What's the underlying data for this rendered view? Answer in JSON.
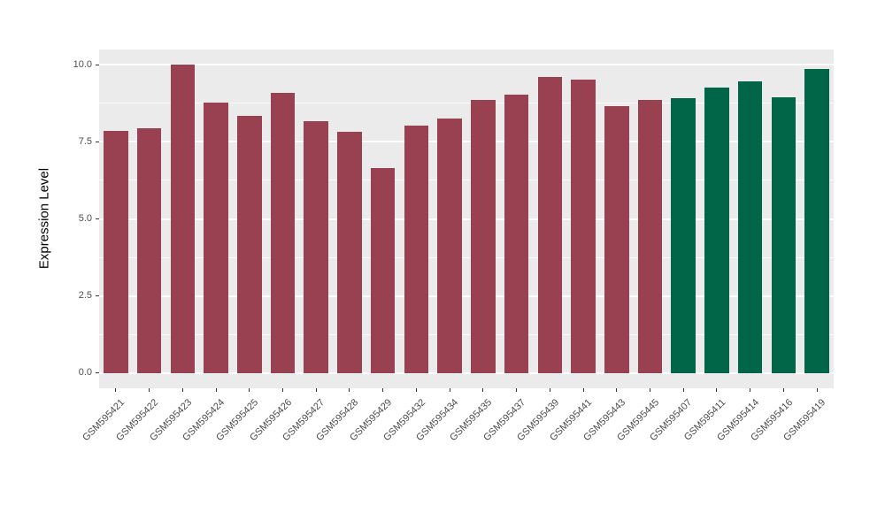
{
  "chart_data": {
    "type": "bar",
    "title": "",
    "xlabel": "",
    "ylabel": "Expression Level",
    "ylim": [
      -0.5,
      10.5
    ],
    "data_range": [
      0,
      10
    ],
    "grid": true,
    "legend_position": "none",
    "yticks": [
      0.0,
      2.5,
      5.0,
      7.5,
      10.0
    ],
    "ytick_labels": [
      "0.0",
      "2.5",
      "5.0",
      "7.5",
      "10.0"
    ],
    "minor_yticks": [
      1.25,
      3.75,
      6.25,
      8.75
    ],
    "categories": [
      "GSM595421",
      "GSM595422",
      "GSM595423",
      "GSM595424",
      "GSM595425",
      "GSM595426",
      "GSM595427",
      "GSM595428",
      "GSM595429",
      "GSM595432",
      "GSM595434",
      "GSM595435",
      "GSM595437",
      "GSM595439",
      "GSM595441",
      "GSM595443",
      "GSM595445",
      "GSM595407",
      "GSM595411",
      "GSM595414",
      "GSM595416",
      "GSM595419"
    ],
    "values": [
      7.87,
      7.94,
      10.0,
      8.78,
      8.35,
      9.09,
      8.18,
      7.83,
      6.65,
      8.04,
      8.26,
      8.87,
      9.03,
      9.6,
      9.52,
      8.65,
      8.85,
      8.92,
      9.26,
      9.47,
      8.94,
      9.86
    ],
    "bar_colors": [
      "#9A4151",
      "#9A4151",
      "#9A4151",
      "#9A4151",
      "#9A4151",
      "#9A4151",
      "#9A4151",
      "#9A4151",
      "#9A4151",
      "#9A4151",
      "#9A4151",
      "#9A4151",
      "#9A4151",
      "#9A4151",
      "#9A4151",
      "#9A4151",
      "#9A4151",
      "#006647",
      "#006647",
      "#006647",
      "#006647",
      "#006647"
    ],
    "colors": {
      "group_red": "#9A4151",
      "group_green": "#006647",
      "panel_background": "#EBEBEB",
      "gridline": "#FFFFFF",
      "axis_text": "#4D4D4D",
      "axis_title": "#000000",
      "figure_background": "#FFFFFF"
    }
  }
}
